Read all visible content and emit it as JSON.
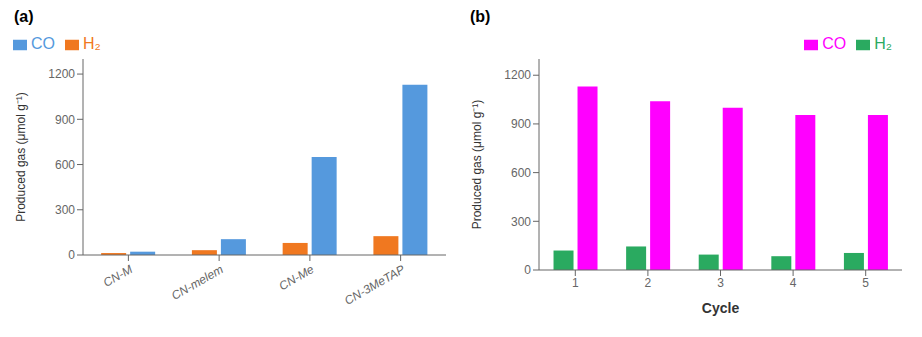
{
  "chart_data": [
    {
      "type": "bar",
      "title": "(a)",
      "categories": [
        "CN-M",
        "CN-melem",
        "CN-Me",
        "CN-3MeTAP"
      ],
      "series": [
        {
          "name": "H₂",
          "color": "#F07820",
          "values": [
            13,
            32,
            80,
            125
          ]
        },
        {
          "name": "CO",
          "color": "#5599DD",
          "values": [
            22,
            105,
            650,
            1130
          ]
        }
      ],
      "y_label": "Produced gas (μmol g⁻¹)",
      "ylim": [
        0,
        1300
      ],
      "yticks": [
        0,
        300,
        600,
        900,
        1200
      ],
      "legend": "upper left",
      "grid": false
    },
    {
      "type": "bar",
      "title": "(b)",
      "categories": [
        "1",
        "2",
        "3",
        "4",
        "5"
      ],
      "series": [
        {
          "name": "H₂",
          "color": "#2AAA60",
          "values": [
            120,
            145,
            95,
            85,
            105
          ]
        },
        {
          "name": "CO",
          "color": "#FF00FF",
          "values": [
            1130,
            1040,
            1000,
            955,
            955
          ]
        }
      ],
      "x_label": "Cycle",
      "y_label": "Produced gas (μmol g⁻¹)",
      "ylim": [
        0,
        1300
      ],
      "yticks": [
        0,
        300,
        600,
        900,
        1200
      ],
      "legend": "upper right",
      "grid": false
    }
  ]
}
